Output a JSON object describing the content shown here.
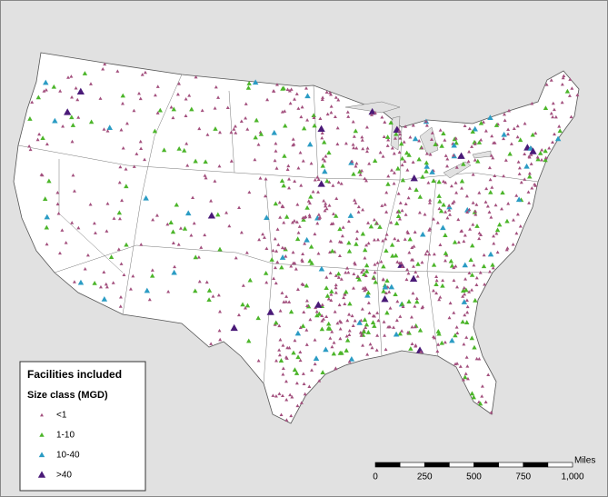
{
  "legend": {
    "title": "Facilities included",
    "subtitle": "Size class (MGD)",
    "items": [
      {
        "label": "<1",
        "color": "#a3507e"
      },
      {
        "label": "1-10",
        "color": "#4cb52a"
      },
      {
        "label": "10-40",
        "color": "#2b9cc4"
      },
      {
        "label": ">40",
        "color": "#4a1a78"
      }
    ]
  },
  "scale_bar": {
    "unit": "Miles",
    "labels": [
      "0",
      "250",
      "500",
      "750",
      "1,000"
    ]
  }
}
